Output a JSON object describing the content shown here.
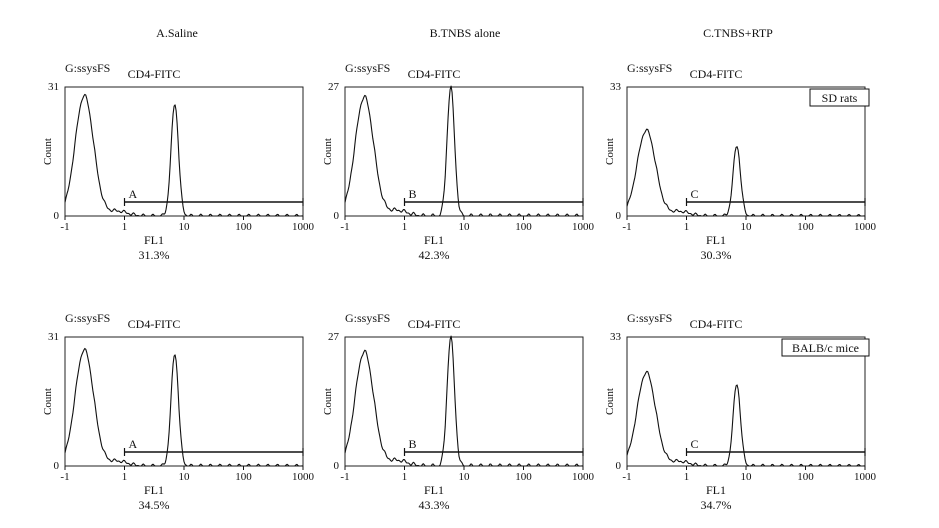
{
  "columns": [
    "A.Saline",
    "B.TNBS alone",
    "C.TNBS+RTP"
  ],
  "chart_data": [
    {
      "type": "area",
      "row": 0,
      "col": 0,
      "gate": "G:ssysFS",
      "title": "CD4-FITC",
      "ylabel": "Count",
      "xlabel": "FL1",
      "ymax": "31",
      "ymin": "0",
      "ylim": [
        0,
        31
      ],
      "x_ticks": [
        "-1",
        "1",
        "10",
        "100",
        "1000"
      ],
      "marker_label": "A",
      "percent": "31.3%",
      "box_label": "",
      "histogram": {
        "neg_peak_x": -0.35,
        "neg_peak_y": 29,
        "pos_peak_x": 7,
        "pos_peak_y": 27,
        "marker_start": 1,
        "marker_end": 1000
      }
    },
    {
      "type": "area",
      "row": 0,
      "col": 1,
      "gate": "G:ssysFS",
      "title": "CD4-FITC",
      "ylabel": "Count",
      "xlabel": "FL1",
      "ymax": "27",
      "ymin": "0",
      "ylim": [
        0,
        27
      ],
      "x_ticks": [
        "-1",
        "1",
        "10",
        "100",
        "1000"
      ],
      "marker_label": "B",
      "percent": "42.3%",
      "box_label": "",
      "histogram": {
        "neg_peak_x": -0.35,
        "neg_peak_y": 25,
        "pos_peak_x": 6,
        "pos_peak_y": 27,
        "marker_start": 1,
        "marker_end": 1000
      }
    },
    {
      "type": "area",
      "row": 0,
      "col": 2,
      "gate": "G:ssysFS",
      "title": "CD4-FITC",
      "ylabel": "Count",
      "xlabel": "FL1",
      "ymax": "33",
      "ymin": "0",
      "ylim": [
        0,
        33
      ],
      "x_ticks": [
        "-1",
        "1",
        "10",
        "100",
        "1000"
      ],
      "marker_label": "C",
      "percent": "30.3%",
      "box_label": "SD rats",
      "histogram": {
        "neg_peak_x": -0.35,
        "neg_peak_y": 22,
        "pos_peak_x": 7,
        "pos_peak_y": 18,
        "marker_start": 1,
        "marker_end": 1000
      }
    },
    {
      "type": "area",
      "row": 1,
      "col": 0,
      "gate": "G:ssysFS",
      "title": "CD4-FITC",
      "ylabel": "Count",
      "xlabel": "FL1",
      "ymax": "31",
      "ymin": "0",
      "ylim": [
        0,
        31
      ],
      "x_ticks": [
        "-1",
        "1",
        "10",
        "100",
        "1000"
      ],
      "marker_label": "A",
      "percent": "34.5%",
      "box_label": "",
      "histogram": {
        "neg_peak_x": -0.35,
        "neg_peak_y": 28,
        "pos_peak_x": 7,
        "pos_peak_y": 27,
        "marker_start": 1,
        "marker_end": 1000
      }
    },
    {
      "type": "area",
      "row": 1,
      "col": 1,
      "gate": "G:ssysFS",
      "title": "CD4-FITC",
      "ylabel": "Count",
      "xlabel": "FL1",
      "ymax": "27",
      "ymin": "0",
      "ylim": [
        0,
        27
      ],
      "x_ticks": [
        "-1",
        "1",
        "10",
        "100",
        "1000"
      ],
      "marker_label": "B",
      "percent": "43.3%",
      "box_label": "",
      "histogram": {
        "neg_peak_x": -0.35,
        "neg_peak_y": 24,
        "pos_peak_x": 6,
        "pos_peak_y": 27,
        "marker_start": 1,
        "marker_end": 1000
      }
    },
    {
      "type": "area",
      "row": 1,
      "col": 2,
      "gate": "G:ssysFS",
      "title": "CD4-FITC",
      "ylabel": "Count",
      "xlabel": "FL1",
      "ymax": "33",
      "ymin": "0",
      "ylim": [
        0,
        33
      ],
      "x_ticks": [
        "-1",
        "1",
        "10",
        "100",
        "1000"
      ],
      "marker_label": "C",
      "percent": "34.7%",
      "box_label": "BALB/c mice",
      "histogram": {
        "neg_peak_x": -0.35,
        "neg_peak_y": 24,
        "pos_peak_x": 7,
        "pos_peak_y": 21,
        "marker_start": 1,
        "marker_end": 1000
      }
    }
  ]
}
